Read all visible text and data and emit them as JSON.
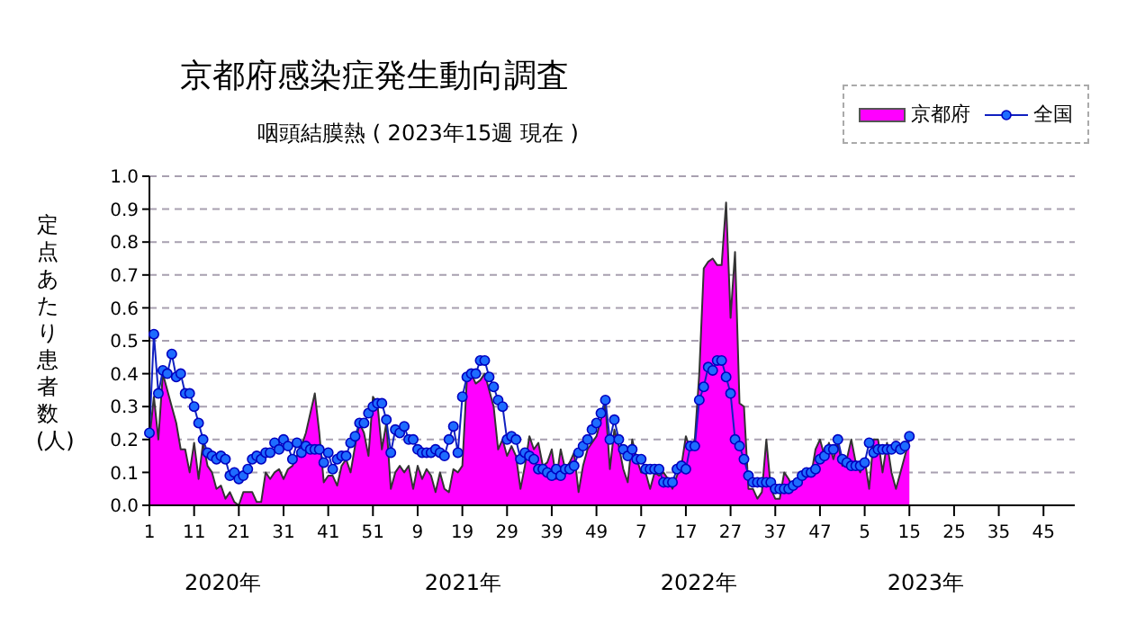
{
  "chart_data": {
    "type": "area",
    "title": "京都府感染症発生動向調査",
    "subtitle": "咽頭結膜熱 ( 2023年15週 現在 )",
    "ylabel": "定点あたり患者数(人)",
    "categories": [
      "1",
      null,
      null,
      null,
      null,
      null,
      null,
      null,
      null,
      null,
      "11",
      null,
      null,
      null,
      null,
      null,
      null,
      null,
      null,
      null,
      "21",
      null,
      null,
      null,
      null,
      null,
      null,
      null,
      null,
      null,
      "31",
      null,
      null,
      null,
      null,
      null,
      null,
      null,
      null,
      null,
      "41",
      null,
      null,
      null,
      null,
      null,
      null,
      null,
      null,
      null,
      "51",
      null,
      null,
      null,
      null,
      null,
      null,
      null,
      null,
      null,
      "9",
      null,
      null,
      null,
      null,
      null,
      null,
      null,
      null,
      null,
      "19",
      null,
      null,
      null,
      null,
      null,
      null,
      null,
      null,
      null,
      "29",
      null,
      null,
      null,
      null,
      null,
      null,
      null,
      null,
      null,
      "39",
      null,
      null,
      null,
      null,
      null,
      null,
      null,
      null,
      null,
      "49",
      null,
      null,
      null,
      null,
      null,
      null,
      null,
      null,
      null,
      "7",
      null,
      null,
      null,
      null,
      null,
      null,
      null,
      null,
      null,
      "17",
      null,
      null,
      null,
      null,
      null,
      null,
      null,
      null,
      null,
      "27",
      null,
      null,
      null,
      null,
      null,
      null,
      null,
      null,
      null,
      "37",
      null,
      null,
      null,
      null,
      null,
      null,
      null,
      null,
      null,
      "47",
      null,
      null,
      null,
      null,
      null,
      null,
      null,
      null,
      null,
      "5",
      null,
      null,
      null,
      null,
      null,
      null,
      null,
      null,
      null,
      "15",
      null,
      null,
      null,
      null,
      null,
      null,
      null,
      null,
      null,
      "25",
      null,
      null,
      null,
      null,
      null,
      null,
      null,
      null,
      null,
      "35",
      null,
      null,
      null,
      null,
      null,
      null,
      null,
      null,
      null,
      "45",
      null,
      null,
      null,
      null,
      null,
      null,
      null
    ],
    "series": [
      {
        "name": "京都府",
        "color": "#ff00ff",
        "marker": "none",
        "values": [
          0.2,
          0.33,
          0.2,
          0.4,
          0.35,
          0.3,
          0.25,
          0.17,
          0.17,
          0.1,
          0.19,
          0.08,
          0.19,
          0.12,
          0.1,
          0.05,
          0.06,
          0.02,
          0.04,
          0.01,
          0.0,
          0.04,
          0.04,
          0.04,
          0.01,
          0.01,
          0.1,
          0.08,
          0.1,
          0.11,
          0.08,
          0.11,
          0.12,
          0.15,
          0.18,
          0.22,
          0.28,
          0.34,
          0.22,
          0.07,
          0.09,
          0.09,
          0.06,
          0.12,
          0.14,
          0.1,
          0.18,
          0.25,
          0.22,
          0.15,
          0.33,
          0.31,
          0.17,
          0.25,
          0.05,
          0.1,
          0.12,
          0.1,
          0.12,
          0.05,
          0.12,
          0.08,
          0.11,
          0.09,
          0.04,
          0.1,
          0.05,
          0.04,
          0.11,
          0.1,
          0.12,
          0.38,
          0.4,
          0.37,
          0.38,
          0.4,
          0.35,
          0.3,
          0.17,
          0.2,
          0.15,
          0.18,
          0.15,
          0.05,
          0.12,
          0.21,
          0.17,
          0.19,
          0.12,
          0.13,
          0.17,
          0.08,
          0.17,
          0.11,
          0.13,
          0.16,
          0.04,
          0.12,
          0.17,
          0.19,
          0.21,
          0.26,
          0.31,
          0.11,
          0.23,
          0.18,
          0.11,
          0.07,
          0.2,
          0.14,
          0.1,
          0.1,
          0.05,
          0.1,
          0.09,
          0.1,
          0.08,
          0.05,
          0.09,
          0.12,
          0.21,
          0.17,
          0.2,
          0.4,
          0.72,
          0.74,
          0.75,
          0.73,
          0.73,
          0.92,
          0.57,
          0.77,
          0.31,
          0.3,
          0.05,
          0.05,
          0.02,
          0.04,
          0.2,
          0.05,
          0.02,
          0.02,
          0.1,
          0.08,
          0.05,
          0.06,
          0.08,
          0.11,
          0.09,
          0.17,
          0.2,
          0.15,
          0.19,
          0.14,
          0.19,
          0.12,
          0.14,
          0.2,
          0.13,
          0.1,
          0.14,
          0.05,
          0.2,
          0.2,
          0.1,
          0.19,
          0.1,
          0.05,
          0.1,
          0.15,
          0.2,
          null,
          null,
          null,
          null,
          null,
          null,
          null,
          null,
          null,
          null,
          null,
          null,
          null,
          null,
          null,
          null,
          null,
          null,
          null,
          null,
          null,
          null,
          null,
          null,
          null,
          null,
          null,
          null,
          null,
          null,
          null,
          null,
          null,
          null,
          null,
          null,
          null
        ]
      },
      {
        "name": "全国",
        "type": "line",
        "color": "#1e6cff",
        "marker": "circle",
        "values": [
          0.22,
          0.52,
          0.34,
          0.41,
          0.4,
          0.46,
          0.39,
          0.4,
          0.34,
          0.34,
          0.3,
          0.25,
          0.2,
          0.16,
          0.15,
          0.14,
          0.15,
          0.14,
          0.09,
          0.1,
          0.08,
          0.09,
          0.11,
          0.14,
          0.15,
          0.14,
          0.16,
          0.16,
          0.19,
          0.17,
          0.2,
          0.18,
          0.14,
          0.19,
          0.16,
          0.18,
          0.17,
          0.17,
          0.17,
          0.13,
          0.16,
          0.11,
          0.14,
          0.15,
          0.15,
          0.19,
          0.21,
          0.25,
          0.25,
          0.28,
          0.3,
          0.31,
          0.31,
          0.26,
          0.16,
          0.23,
          0.22,
          0.24,
          0.2,
          0.2,
          0.17,
          0.16,
          0.16,
          0.16,
          0.17,
          0.16,
          0.15,
          0.2,
          0.24,
          0.16,
          0.33,
          0.39,
          0.4,
          0.4,
          0.44,
          0.44,
          0.39,
          0.36,
          0.32,
          0.3,
          0.2,
          0.21,
          0.2,
          0.14,
          0.16,
          0.15,
          0.14,
          0.11,
          0.11,
          0.1,
          0.09,
          0.11,
          0.09,
          0.11,
          0.11,
          0.12,
          0.16,
          0.18,
          0.2,
          0.23,
          0.25,
          0.28,
          0.32,
          0.2,
          0.26,
          0.2,
          0.17,
          0.15,
          0.17,
          0.14,
          0.14,
          0.11,
          0.11,
          0.11,
          0.11,
          0.07,
          0.07,
          0.07,
          0.11,
          0.12,
          0.11,
          0.18,
          0.18,
          0.32,
          0.36,
          0.42,
          0.41,
          0.44,
          0.44,
          0.39,
          0.34,
          0.2,
          0.18,
          0.14,
          0.09,
          0.07,
          0.07,
          0.07,
          0.07,
          0.07,
          0.05,
          0.05,
          0.05,
          0.05,
          0.06,
          0.07,
          0.09,
          0.1,
          0.1,
          0.11,
          0.14,
          0.15,
          0.17,
          0.17,
          0.2,
          0.14,
          0.13,
          0.12,
          0.12,
          0.12,
          0.13,
          0.19,
          0.16,
          0.17,
          0.17,
          0.17,
          0.17,
          0.18,
          0.17,
          0.18,
          0.21,
          null,
          null,
          null,
          null,
          null,
          null,
          null,
          null,
          null,
          null,
          null,
          null,
          null,
          null,
          null,
          null,
          null,
          null,
          null,
          null,
          null,
          null,
          null,
          null,
          null,
          null,
          null,
          null,
          null,
          null,
          null,
          null,
          null,
          null,
          null,
          null,
          null
        ]
      }
    ],
    "ylim": [
      0,
      1
    ],
    "yticks": [
      {
        "value": 0,
        "label": "0.0"
      },
      {
        "value": 0.1,
        "label": "0.1"
      },
      {
        "value": 0.2,
        "label": "0.2"
      },
      {
        "value": 0.3,
        "label": "0.3"
      },
      {
        "value": 0.4,
        "label": "0.4"
      },
      {
        "value": 0.5,
        "label": "0.5"
      },
      {
        "value": 0.6,
        "label": "0.6"
      },
      {
        "value": 0.7,
        "label": "0.7"
      },
      {
        "value": 0.8,
        "label": "0.8"
      },
      {
        "value": 0.9,
        "label": "0.9"
      },
      {
        "value": 1,
        "label": "1.0"
      }
    ],
    "grid": "y",
    "legend": "top right",
    "annotations": [
      "2020年",
      "2021年",
      "2022年",
      "2023年"
    ]
  }
}
